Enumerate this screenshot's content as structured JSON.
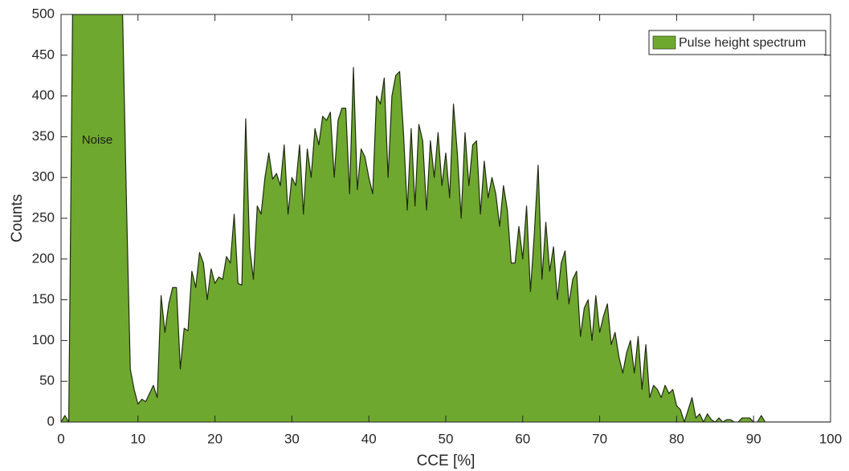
{
  "chart_data": {
    "type": "area",
    "xlabel": "CCE [%]",
    "ylabel": "Counts",
    "annotation": "Noise",
    "legend": "upper right",
    "grid": false,
    "xlim": [
      0,
      100
    ],
    "ylim": [
      0,
      500
    ],
    "xticks": [
      0,
      10,
      20,
      30,
      40,
      50,
      60,
      70,
      80,
      90,
      100
    ],
    "yticks": [
      0,
      50,
      100,
      150,
      200,
      250,
      300,
      350,
      400,
      450,
      500
    ],
    "x": [
      0,
      0.5,
      1,
      1.5,
      2,
      2.5,
      3,
      3.5,
      4,
      4.5,
      5,
      5.5,
      6,
      6.5,
      7,
      7.5,
      8,
      8.5,
      9,
      9.5,
      10,
      10.5,
      11,
      11.5,
      12,
      12.5,
      13,
      13.5,
      14,
      14.5,
      15,
      15.5,
      16,
      16.5,
      17,
      17.5,
      18,
      18.5,
      19,
      19.5,
      20,
      20.5,
      21,
      21.5,
      22,
      22.5,
      23,
      23.5,
      24,
      24.5,
      25,
      25.5,
      26,
      26.5,
      27,
      27.5,
      28,
      28.5,
      29,
      29.5,
      30,
      30.5,
      31,
      31.5,
      32,
      32.5,
      33,
      33.5,
      34,
      34.5,
      35,
      35.5,
      36,
      36.5,
      37,
      37.5,
      38,
      38.5,
      39,
      39.5,
      40,
      40.5,
      41,
      41.5,
      42,
      42.5,
      43,
      43.5,
      44,
      44.5,
      45,
      45.5,
      46,
      46.5,
      47,
      47.5,
      48,
      48.5,
      49,
      49.5,
      50,
      50.5,
      51,
      51.5,
      52,
      52.5,
      53,
      53.5,
      54,
      54.5,
      55,
      55.5,
      56,
      56.5,
      57,
      57.5,
      58,
      58.5,
      59,
      59.5,
      60,
      60.5,
      61,
      61.5,
      62,
      62.5,
      63,
      63.5,
      64,
      64.5,
      65,
      65.5,
      66,
      66.5,
      67,
      67.5,
      68,
      68.5,
      69,
      69.5,
      70,
      70.5,
      71,
      71.5,
      72,
      72.5,
      73,
      73.5,
      74,
      74.5,
      75,
      75.5,
      76,
      76.5,
      77,
      77.5,
      78,
      78.5,
      79,
      79.5,
      80,
      80.5,
      81,
      81.5,
      82,
      82.5,
      83,
      83.5,
      84,
      84.5,
      85,
      85.5,
      86,
      86.5,
      87,
      87.5,
      88,
      88.5,
      89,
      89.5,
      90,
      90.5,
      91,
      91.5,
      92,
      100
    ],
    "series": [
      {
        "name": "Pulse height spectrum",
        "color": "#6fa82f",
        "line_color": "#1f2a12",
        "values": [
          0,
          8,
          0,
          500,
          500,
          500,
          500,
          500,
          500,
          500,
          500,
          500,
          500,
          500,
          500,
          500,
          500,
          270,
          65,
          40,
          22,
          28,
          25,
          35,
          45,
          30,
          155,
          110,
          145,
          165,
          165,
          65,
          115,
          112,
          185,
          165,
          208,
          195,
          150,
          188,
          170,
          178,
          175,
          203,
          195,
          255,
          170,
          168,
          372,
          215,
          175,
          265,
          255,
          300,
          330,
          298,
          305,
          290,
          340,
          255,
          300,
          290,
          340,
          255,
          335,
          300,
          360,
          340,
          375,
          370,
          380,
          300,
          370,
          385,
          385,
          280,
          435,
          285,
          335,
          325,
          300,
          280,
          400,
          390,
          422,
          300,
          400,
          425,
          430,
          355,
          260,
          360,
          265,
          365,
          345,
          260,
          345,
          300,
          355,
          290,
          330,
          275,
          390,
          330,
          250,
          355,
          290,
          340,
          345,
          255,
          320,
          275,
          300,
          280,
          240,
          290,
          260,
          195,
          195,
          240,
          200,
          265,
          160,
          230,
          315,
          175,
          245,
          185,
          215,
          150,
          195,
          210,
          145,
          175,
          185,
          105,
          140,
          150,
          100,
          155,
          110,
          130,
          145,
          95,
          110,
          80,
          60,
          85,
          100,
          60,
          105,
          40,
          95,
          30,
          45,
          40,
          30,
          45,
          35,
          40,
          20,
          15,
          0,
          15,
          30,
          5,
          10,
          0,
          10,
          3,
          0,
          5,
          0,
          3,
          3,
          0,
          0,
          5,
          5,
          5,
          0,
          0,
          8,
          0,
          0,
          0
        ]
      }
    ]
  }
}
